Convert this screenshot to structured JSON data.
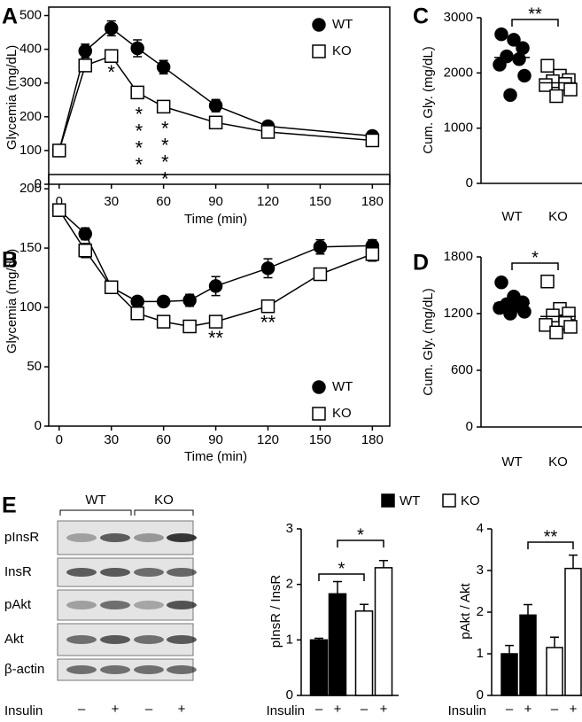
{
  "chart_data": [
    {
      "type": "line",
      "label": "A",
      "xlabel": "Time (min)",
      "ylabel": "Glycemia (mg/dL)",
      "x": [
        0,
        15,
        30,
        45,
        60,
        90,
        120,
        180
      ],
      "xlim": [
        -6,
        190
      ],
      "xticks": [
        0,
        30,
        60,
        90,
        120,
        150,
        180
      ],
      "ylim": [
        0,
        525
      ],
      "yticks": [
        0,
        100,
        200,
        300,
        400,
        500
      ],
      "legend": "upper right",
      "series": [
        {
          "name": "WT",
          "color": "#000000",
          "marker": "circle",
          "values": [
            100,
            395,
            462,
            403,
            347,
            233,
            172,
            143
          ],
          "errors": [
            8,
            20,
            22,
            25,
            20,
            18,
            12,
            10
          ]
        },
        {
          "name": "KO",
          "color": "#ffffff",
          "marker": "square",
          "values": [
            100,
            352,
            380,
            272,
            230,
            183,
            155,
            130
          ],
          "errors": [
            8,
            15,
            15,
            12,
            12,
            15,
            10,
            8
          ]
        }
      ],
      "annotations": [
        {
          "text": "*",
          "x": 30
        },
        {
          "text": "****",
          "x": 45
        },
        {
          "text": "****",
          "x": 60
        }
      ]
    },
    {
      "type": "dot",
      "label": "C",
      "ylabel": "Cum. Gly. (mg/dL)",
      "categories": [
        "WT",
        "KO"
      ],
      "points": [
        [
          2700,
          2600,
          2450,
          2300,
          2250,
          2150,
          1950,
          1600
        ],
        [
          2130,
          1950,
          1870,
          1850,
          1800,
          1780,
          1700,
          1580
        ]
      ],
      "means": [
        2280,
        1820
      ],
      "colors": [
        "#000000",
        "#ffffff"
      ],
      "markers": [
        "circle",
        "square"
      ],
      "ylim": [
        0,
        3000
      ],
      "yticks": [
        0,
        1000,
        2000,
        3000
      ],
      "significance": [
        {
          "text": "**",
          "categories": [
            0,
            1
          ]
        }
      ]
    },
    {
      "type": "line",
      "label": "B",
      "xlabel": "Time (min)",
      "ylabel": "Glycemia (mg/dL)",
      "x": [
        0,
        15,
        30,
        45,
        60,
        75,
        90,
        120,
        150,
        180
      ],
      "xlim": [
        -6,
        190
      ],
      "xticks": [
        0,
        30,
        60,
        90,
        120,
        150,
        180
      ],
      "ylim": [
        0,
        212
      ],
      "yticks": [
        0,
        50,
        100,
        150,
        200
      ],
      "legend": "lower right",
      "series": [
        {
          "name": "WT",
          "color": "#000000",
          "marker": "circle",
          "values": [
            182,
            162,
            117,
            105,
            105,
            106,
            118,
            133,
            151,
            152
          ],
          "errors": [
            4,
            5,
            4,
            4,
            4,
            5,
            8,
            8,
            6,
            5
          ]
        },
        {
          "name": "KO",
          "color": "#ffffff",
          "marker": "square",
          "values": [
            182,
            148,
            117,
            95,
            88,
            84,
            88,
            101,
            128,
            145
          ],
          "errors": [
            4,
            6,
            4,
            4,
            4,
            4,
            4,
            5,
            5,
            6
          ]
        }
      ],
      "annotations": [
        {
          "text": "**",
          "x": 90
        },
        {
          "text": "**",
          "x": 120
        }
      ]
    },
    {
      "type": "dot",
      "label": "D",
      "ylabel": "Cum. Gly. (mg/dL)",
      "categories": [
        "WT",
        "KO"
      ],
      "points": [
        [
          1530,
          1380,
          1320,
          1300,
          1280,
          1260,
          1220,
          1200
        ],
        [
          1540,
          1250,
          1200,
          1180,
          1100,
          1080,
          1060,
          1000
        ]
      ],
      "means": [
        1310,
        1170
      ],
      "colors": [
        "#000000",
        "#ffffff"
      ],
      "markers": [
        "circle",
        "square"
      ],
      "ylim": [
        0,
        1800
      ],
      "yticks": [
        0,
        600,
        1200,
        1800
      ],
      "significance": [
        {
          "text": "*",
          "categories": [
            0,
            1
          ]
        }
      ]
    },
    {
      "type": "bar",
      "ylabel": "pInsR / InsR",
      "xlabel": "Insulin",
      "categories": [
        "–",
        "+",
        "–",
        "+"
      ],
      "values": [
        1.0,
        1.83,
        1.52,
        2.3
      ],
      "errors": [
        0.03,
        0.22,
        0.12,
        0.13
      ],
      "colors": [
        "#000000",
        "#000000",
        "#ffffff",
        "#ffffff"
      ],
      "ylim": [
        0,
        3
      ],
      "yticks": [
        0,
        1,
        2,
        3
      ],
      "legend": [
        {
          "name": "WT",
          "color": "#000000"
        },
        {
          "name": "KO",
          "color": "#ffffff"
        }
      ],
      "significance": [
        {
          "text": "*",
          "categories": [
            0,
            2
          ]
        },
        {
          "text": "*",
          "categories": [
            1,
            3
          ]
        }
      ]
    },
    {
      "type": "bar",
      "ylabel": "pAkt / Akt",
      "xlabel": "Insulin",
      "categories": [
        "–",
        "+",
        "–",
        "+"
      ],
      "values": [
        1.0,
        1.93,
        1.15,
        3.05
      ],
      "errors": [
        0.2,
        0.25,
        0.25,
        0.32
      ],
      "colors": [
        "#000000",
        "#000000",
        "#ffffff",
        "#ffffff"
      ],
      "ylim": [
        0,
        4
      ],
      "yticks": [
        0,
        1,
        2,
        3,
        4
      ],
      "significance": [
        {
          "text": "**",
          "categories": [
            1,
            3
          ]
        }
      ]
    }
  ],
  "blot": {
    "label": "E",
    "groups": [
      "WT",
      "KO"
    ],
    "rows": [
      "pInsR",
      "InsR",
      "pAkt",
      "Akt",
      "β-actin"
    ],
    "treatment": "Insulin",
    "lanes": [
      "–",
      "+",
      "–",
      "+"
    ]
  }
}
